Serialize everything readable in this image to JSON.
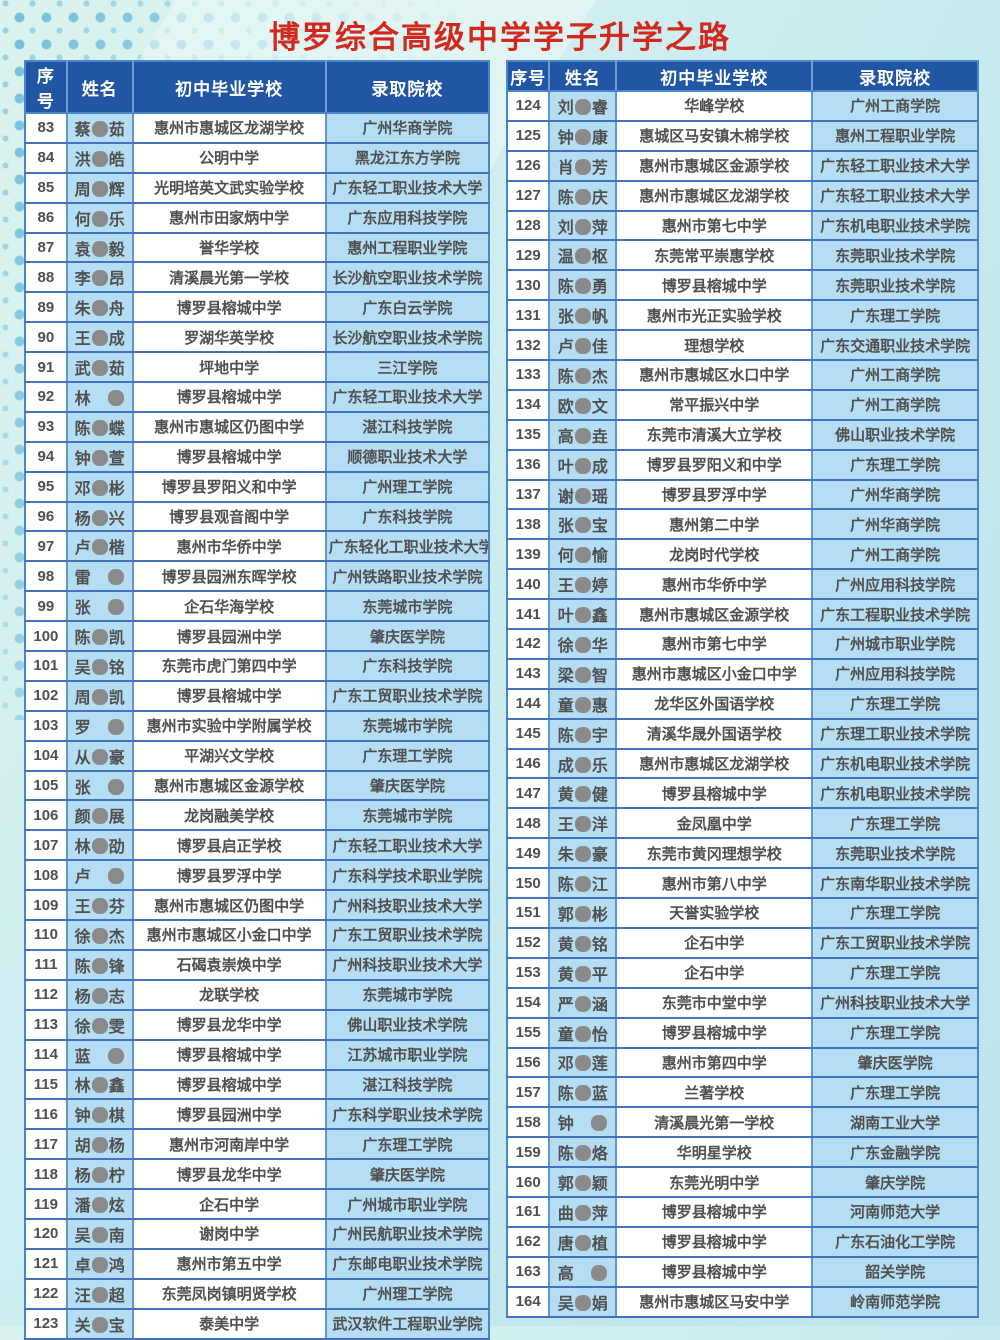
{
  "title": "博罗综合高级中学学子升学之路",
  "columns": [
    "序号",
    "姓名",
    "初中毕业学校",
    "录取院校"
  ],
  "redact_marker": "●",
  "colors": {
    "title_red": "#d3281e",
    "header_blue": "#2156a5",
    "cell_light_blue": "#b5def4",
    "border_blue": "#4a86c8",
    "dot_teal": "#2799ce",
    "redaction_gray": "#8a8a8a"
  },
  "tables": [
    {
      "rows": [
        [
          "83",
          "蔡●茹",
          "惠州市惠城区龙湖学校",
          "广州华商学院"
        ],
        [
          "84",
          "洪●皓",
          "公明中学",
          "黑龙江东方学院"
        ],
        [
          "85",
          "周●辉",
          "光明培英文武实验学校",
          "广东轻工职业技术大学"
        ],
        [
          "86",
          "何●乐",
          "惠州市田家炳中学",
          "广东应用科技学院"
        ],
        [
          "87",
          "袁●毅",
          "誉华学校",
          "惠州工程职业学院"
        ],
        [
          "88",
          "李●昂",
          "清溪晨光第一学校",
          "长沙航空职业技术学院"
        ],
        [
          "89",
          "朱●舟",
          "博罗县榕城中学",
          "广东白云学院"
        ],
        [
          "90",
          "王●成",
          "罗湖华英学校",
          "长沙航空职业技术学院"
        ],
        [
          "91",
          "武●茹",
          "坪地中学",
          "三江学院"
        ],
        [
          "92",
          "林　●",
          "博罗县榕城中学",
          "广东轻工职业技术大学"
        ],
        [
          "93",
          "陈●蝶",
          "惠州市惠城区仍图中学",
          "湛江科技学院"
        ],
        [
          "94",
          "钟●萱",
          "博罗县榕城中学",
          "顺德职业技术大学"
        ],
        [
          "95",
          "邓●彬",
          "博罗县罗阳义和中学",
          "广州理工学院"
        ],
        [
          "96",
          "杨●兴",
          "博罗县观音阁中学",
          "广东科技学院"
        ],
        [
          "97",
          "卢●楷",
          "惠州市华侨中学",
          "广东轻化工职业技术大学"
        ],
        [
          "98",
          "雷　●",
          "博罗县园洲东晖学校",
          "广州铁路职业技术学院"
        ],
        [
          "99",
          "张　●",
          "企石华海学校",
          "东莞城市学院"
        ],
        [
          "100",
          "陈●凯",
          "博罗县园洲中学",
          "肇庆医学院"
        ],
        [
          "101",
          "吴●铭",
          "东莞市虎门第四中学",
          "广东科技学院"
        ],
        [
          "102",
          "周●凯",
          "博罗县榕城中学",
          "广东工贸职业技术学院"
        ],
        [
          "103",
          "罗　●",
          "惠州市实验中学附属学校",
          "东莞城市学院"
        ],
        [
          "104",
          "从●豪",
          "平湖兴文学校",
          "广东理工学院"
        ],
        [
          "105",
          "张　●",
          "惠州市惠城区金源学校",
          "肇庆医学院"
        ],
        [
          "106",
          "颜●展",
          "龙岗融美学校",
          "东莞城市学院"
        ],
        [
          "107",
          "林●劭",
          "博罗县启正学校",
          "广东轻工职业技术大学"
        ],
        [
          "108",
          "卢　●",
          "博罗县罗浮中学",
          "广东科学技术职业学院"
        ],
        [
          "109",
          "王●芬",
          "惠州市惠城区仍图中学",
          "广州科技职业技术大学"
        ],
        [
          "110",
          "徐●杰",
          "惠州市惠城区小金口中学",
          "广东工贸职业技术学院"
        ],
        [
          "111",
          "陈●锋",
          "石碣袁崇焕中学",
          "广州科技职业技术大学"
        ],
        [
          "112",
          "杨●志",
          "龙联学校",
          "东莞城市学院"
        ],
        [
          "113",
          "徐●雯",
          "博罗县龙华中学",
          "佛山职业技术学院"
        ],
        [
          "114",
          "蓝　●",
          "博罗县榕城中学",
          "江苏城市职业学院"
        ],
        [
          "115",
          "林●鑫",
          "博罗县榕城中学",
          "湛江科技学院"
        ],
        [
          "116",
          "钟●棋",
          "博罗县园洲中学",
          "广东科学职业技术学院"
        ],
        [
          "117",
          "胡●杨",
          "惠州市河南岸中学",
          "广东理工学院"
        ],
        [
          "118",
          "杨●柠",
          "博罗县龙华中学",
          "肇庆医学院"
        ],
        [
          "119",
          "潘●炫",
          "企石中学",
          "广州城市职业学院"
        ],
        [
          "120",
          "吴●南",
          "谢岗中学",
          "广州民航职业技术学院"
        ],
        [
          "121",
          "卓●鸿",
          "惠州市第五中学",
          "广东邮电职业技术学院"
        ],
        [
          "122",
          "汪●超",
          "东莞凤岗镇明贤学校",
          "广州理工学院"
        ],
        [
          "123",
          "关●宝",
          "泰美中学",
          "武汉软件工程职业学院"
        ]
      ]
    },
    {
      "rows": [
        [
          "124",
          "刘●睿",
          "华峰学校",
          "广州工商学院"
        ],
        [
          "125",
          "钟●康",
          "惠城区马安镇木棉学校",
          "惠州工程职业学院"
        ],
        [
          "126",
          "肖●芳",
          "惠州市惠城区金源学校",
          "广东轻工职业技术大学"
        ],
        [
          "127",
          "陈●庆",
          "惠州市惠城区龙湖学校",
          "广东轻工职业技术大学"
        ],
        [
          "128",
          "刘●萍",
          "惠州市第七中学",
          "广东机电职业技术学院"
        ],
        [
          "129",
          "温●枢",
          "东莞常平崇惠学校",
          "东莞职业技术学院"
        ],
        [
          "130",
          "陈●勇",
          "博罗县榕城中学",
          "东莞职业技术学院"
        ],
        [
          "131",
          "张●帆",
          "惠州市光正实验学校",
          "广东理工学院"
        ],
        [
          "132",
          "卢●佳",
          "理想学校",
          "广东交通职业技术学院"
        ],
        [
          "133",
          "陈●杰",
          "惠州市惠城区水口中学",
          "广州工商学院"
        ],
        [
          "134",
          "欧●文",
          "常平振兴中学",
          "广州工商学院"
        ],
        [
          "135",
          "高●垚",
          "东莞市清溪大立学校",
          "佛山职业技术学院"
        ],
        [
          "136",
          "叶●成",
          "博罗县罗阳义和中学",
          "广东理工学院"
        ],
        [
          "137",
          "谢●瑶",
          "博罗县罗浮中学",
          "广州华商学院"
        ],
        [
          "138",
          "张●宝",
          "惠州第二中学",
          "广州华商学院"
        ],
        [
          "139",
          "何●愉",
          "龙岗时代学校",
          "广州工商学院"
        ],
        [
          "140",
          "王●婷",
          "惠州市华侨中学",
          "广州应用科技学院"
        ],
        [
          "141",
          "叶●鑫",
          "惠州市惠城区金源学校",
          "广东工程职业技术学院"
        ],
        [
          "142",
          "徐●华",
          "惠州市第七中学",
          "广州城市职业学院"
        ],
        [
          "143",
          "梁●智",
          "惠州市惠城区小金口中学",
          "广州应用科技学院"
        ],
        [
          "144",
          "童●惠",
          "龙华区外国语学校",
          "广东理工学院"
        ],
        [
          "145",
          "陈●宇",
          "清溪华晟外国语学校",
          "广东理工职业技术学院"
        ],
        [
          "146",
          "成●乐",
          "惠州市惠城区龙湖学校",
          "广东机电职业技术学院"
        ],
        [
          "147",
          "黄●健",
          "博罗县榕城中学",
          "广东机电职业技术学院"
        ],
        [
          "148",
          "王●洋",
          "金凤凰中学",
          "广东理工学院"
        ],
        [
          "149",
          "朱●豪",
          "东莞市黄冈理想学校",
          "东莞职业技术学院"
        ],
        [
          "150",
          "陈●江",
          "惠州市第八中学",
          "广东南华职业技术学院"
        ],
        [
          "151",
          "郭●彬",
          "天誉实验学校",
          "广东理工学院"
        ],
        [
          "152",
          "黄●铭",
          "企石中学",
          "广东工贸职业技术学院"
        ],
        [
          "153",
          "黄●平",
          "企石中学",
          "广东理工学院"
        ],
        [
          "154",
          "严●涵",
          "东莞市中堂中学",
          "广州科技职业技术大学"
        ],
        [
          "155",
          "童●怡",
          "博罗县榕城中学",
          "广东理工学院"
        ],
        [
          "156",
          "邓●莲",
          "惠州市第四中学",
          "肇庆医学院"
        ],
        [
          "157",
          "陈●蓝",
          "兰著学校",
          "广东理工学院"
        ],
        [
          "158",
          "钟　●",
          "清溪晨光第一学校",
          "湖南工业大学"
        ],
        [
          "159",
          "陈●烙",
          "华明星学校",
          "广东金融学院"
        ],
        [
          "160",
          "郭●颖",
          "东莞光明中学",
          "肇庆学院"
        ],
        [
          "161",
          "曲●萍",
          "博罗县榕城中学",
          "河南师范大学"
        ],
        [
          "162",
          "唐●植",
          "博罗县榕城中学",
          "广东石油化工学院"
        ],
        [
          "163",
          "高　●",
          "博罗县榕城中学",
          "韶关学院"
        ],
        [
          "164",
          "吴●娟",
          "惠州市惠城区马安中学",
          "岭南师范学院"
        ]
      ]
    }
  ]
}
